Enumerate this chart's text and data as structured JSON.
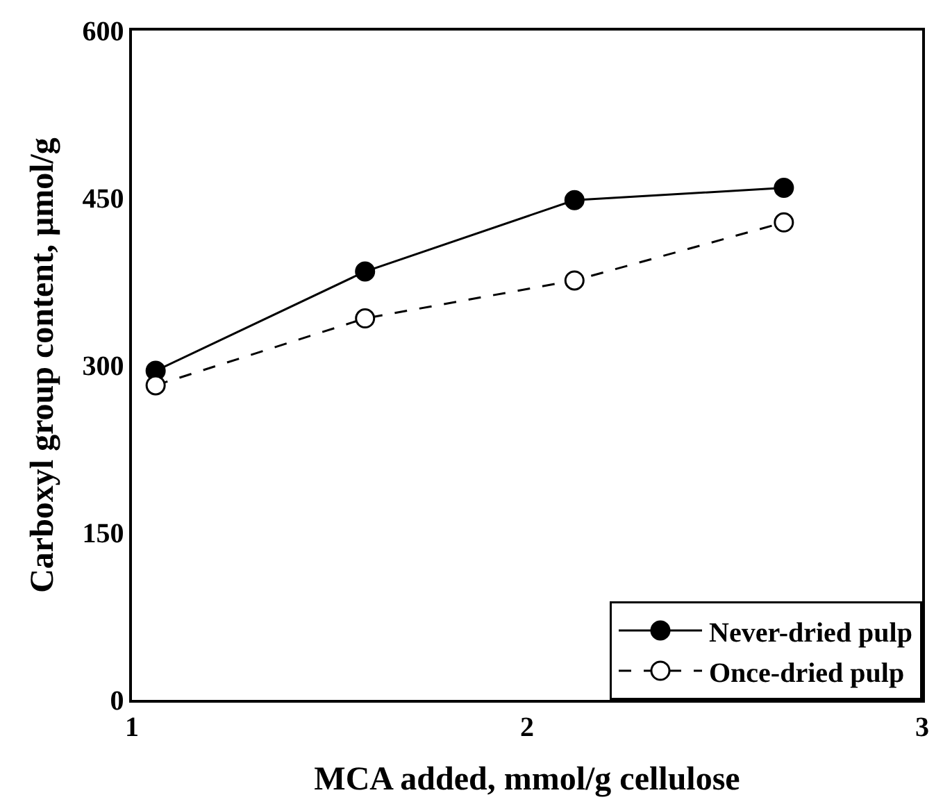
{
  "chart_data": {
    "type": "line",
    "xlabel": "MCA added, mmol/g cellulose",
    "ylabel": "Carboxyl group content, μmol/g",
    "x": [
      1.06,
      1.59,
      2.12,
      2.65
    ],
    "series": [
      {
        "name": "Never-dried pulp",
        "color": "#000000",
        "values": [
          295,
          384,
          448,
          459
        ],
        "marker": "circle",
        "line_style": "solid"
      },
      {
        "name": "Once-dried pulp",
        "color": "#000000",
        "values": [
          282,
          342,
          376,
          428
        ],
        "marker": "circle",
        "line_style": "dashed"
      }
    ],
    "xlim": [
      1,
      3
    ],
    "xticks": [
      1,
      2,
      3
    ],
    "ylim": [
      0,
      600
    ],
    "yticks": [
      0,
      150,
      300,
      450,
      600
    ],
    "grid": false,
    "legend": "bottom right"
  }
}
